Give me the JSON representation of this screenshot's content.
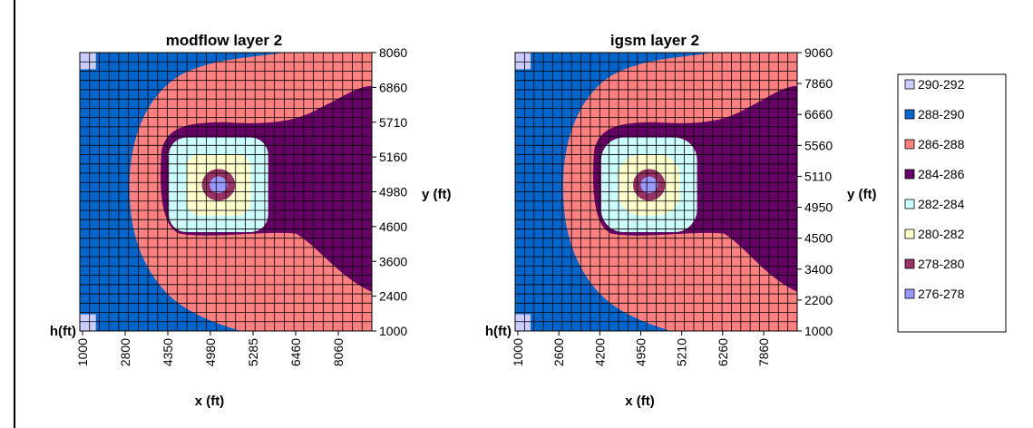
{
  "chart_data": [
    {
      "type": "heatmap",
      "title": "modflow layer 2",
      "xlabel": "x (ft)",
      "ylabel": "y (ft)",
      "zlabel": "h(ft)",
      "x_ticks": [
        "1000",
        "2800",
        "4350",
        "4980",
        "5285",
        "6460",
        "8060"
      ],
      "y_ticks": [
        "1000",
        "2400",
        "3600",
        "4600",
        "4980",
        "5160",
        "5710",
        "6860",
        "8060"
      ],
      "grid_cells": 30,
      "centre_band_shape": "square"
    },
    {
      "type": "heatmap",
      "title": "igsm layer 2",
      "xlabel": "x (ft)",
      "ylabel": "y (ft)",
      "zlabel": "h(ft)",
      "x_ticks": [
        "1000",
        "2600",
        "4200",
        "4950",
        "5210",
        "6260",
        "7860"
      ],
      "y_ticks": [
        "1000",
        "2200",
        "3400",
        "4500",
        "4950",
        "5110",
        "5560",
        "6660",
        "7860",
        "9060"
      ],
      "grid_cells": 30,
      "centre_band_shape": "round"
    }
  ],
  "legend": {
    "placement": "right",
    "items": [
      {
        "label": "290-292",
        "color": "#ccccff"
      },
      {
        "label": "288-290",
        "color": "#0066cc"
      },
      {
        "label": "286-288",
        "color": "#ff8080"
      },
      {
        "label": "284-286",
        "color": "#660066"
      },
      {
        "label": "282-284",
        "color": "#ccffff"
      },
      {
        "label": "280-282",
        "color": "#ffffcc"
      },
      {
        "label": "278-280",
        "color": "#993366"
      },
      {
        "label": "276-278",
        "color": "#9999ff"
      }
    ]
  }
}
